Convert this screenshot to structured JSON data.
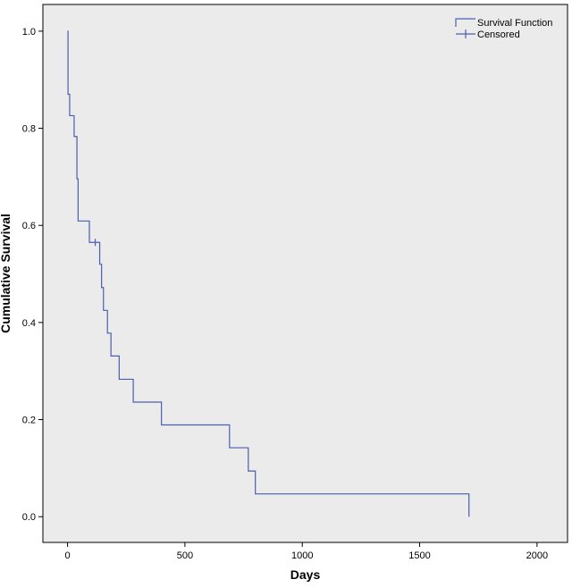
{
  "chart_data": {
    "type": "line",
    "step": true,
    "xlabel": "Days",
    "ylabel": "Cumulative Survival",
    "xlim": [
      -105,
      2130
    ],
    "ylim": [
      -0.053,
      1.055
    ],
    "xticks": [
      0,
      500,
      1000,
      1500,
      2000
    ],
    "yticks": [
      0.0,
      0.2,
      0.4,
      0.6,
      0.8,
      1.0
    ],
    "xtick_labels": [
      "0",
      "500",
      "1000",
      "1500",
      "2000"
    ],
    "ytick_labels": [
      "0.0",
      "0.2",
      "0.4",
      "0.6",
      "0.8",
      "1.0"
    ],
    "grid": false,
    "legend_position": "top-right",
    "colors": {
      "line": "#4a5fb0",
      "plot_bg": "#ebebeb",
      "axis": "#000000"
    },
    "series": [
      {
        "name": "Survival Function",
        "x": [
          0,
          2,
          9,
          28,
          40,
          45,
          93,
          137,
          145,
          153,
          170,
          185,
          220,
          280,
          400,
          690,
          770,
          800,
          1710
        ],
        "y": [
          1.0,
          0.87,
          0.826,
          0.783,
          0.696,
          0.609,
          0.565,
          0.52,
          0.472,
          0.425,
          0.378,
          0.331,
          0.283,
          0.236,
          0.189,
          0.142,
          0.094,
          0.047,
          0.0
        ]
      }
    ],
    "censored": {
      "name": "Censored",
      "points": [
        [
          118,
          0.565
        ]
      ]
    }
  }
}
